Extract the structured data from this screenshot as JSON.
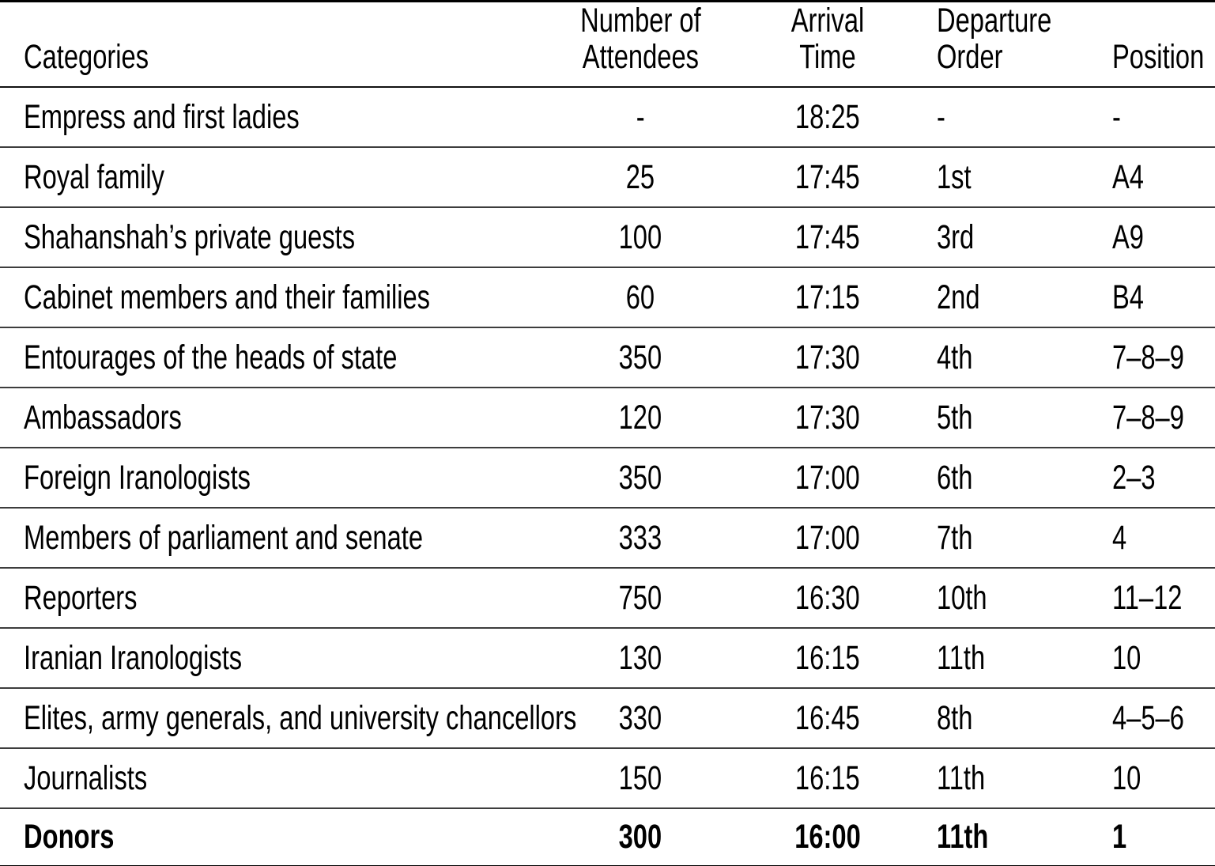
{
  "table": {
    "headers": [
      {
        "text": "Categories"
      },
      {
        "text": "Number of\nAttendees"
      },
      {
        "text": "Arrival Time"
      },
      {
        "text": "Departure\nOrder"
      },
      {
        "text": "Position"
      }
    ],
    "rows": [
      {
        "category": "Empress and first ladies",
        "attendees": "-",
        "arrival": "18:25",
        "departure": "-",
        "position": "-"
      },
      {
        "category": "Royal family",
        "attendees": "25",
        "arrival": "17:45",
        "departure": "1st",
        "position": "A4"
      },
      {
        "category": "Shahanshah’s private guests",
        "attendees": "100",
        "arrival": "17:45",
        "departure": "3rd",
        "position": "A9"
      },
      {
        "category": "Cabinet members and their families",
        "attendees": "60",
        "arrival": "17:15",
        "departure": "2nd",
        "position": "B4"
      },
      {
        "category": "Entourages of the heads of state",
        "attendees": "350",
        "arrival": "17:30",
        "departure": "4th",
        "position": "7–8–9"
      },
      {
        "category": "Ambassadors",
        "attendees": "120",
        "arrival": "17:30",
        "departure": "5th",
        "position": "7–8–9"
      },
      {
        "category": "Foreign Iranologists",
        "attendees": "350",
        "arrival": "17:00",
        "departure": "6th",
        "position": "2–3"
      },
      {
        "category": "Members of parliament and senate",
        "attendees": "333",
        "arrival": "17:00",
        "departure": "7th",
        "position": "4"
      },
      {
        "category": "Reporters",
        "attendees": "750",
        "arrival": "16:30",
        "departure": "10th",
        "position": "11–12"
      },
      {
        "category": "Iranian Iranologists",
        "attendees": "130",
        "arrival": "16:15",
        "departure": "11th",
        "position": "10"
      },
      {
        "category": "Elites, army generals, and university chancellors",
        "attendees": "330",
        "arrival": "16:45",
        "departure": "8th",
        "position": "4–5–6"
      },
      {
        "category": "Journalists",
        "attendees": "150",
        "arrival": "16:15",
        "departure": "11th",
        "position": "10"
      },
      {
        "category": "Donors",
        "attendees": "300",
        "arrival": "16:00",
        "departure": "11th",
        "position": "1",
        "bold": true
      }
    ],
    "colors": {
      "text": "#000000",
      "outer_rule": "#000000",
      "inner_rule": "#3d3d3d",
      "background": "#ffffff"
    }
  }
}
